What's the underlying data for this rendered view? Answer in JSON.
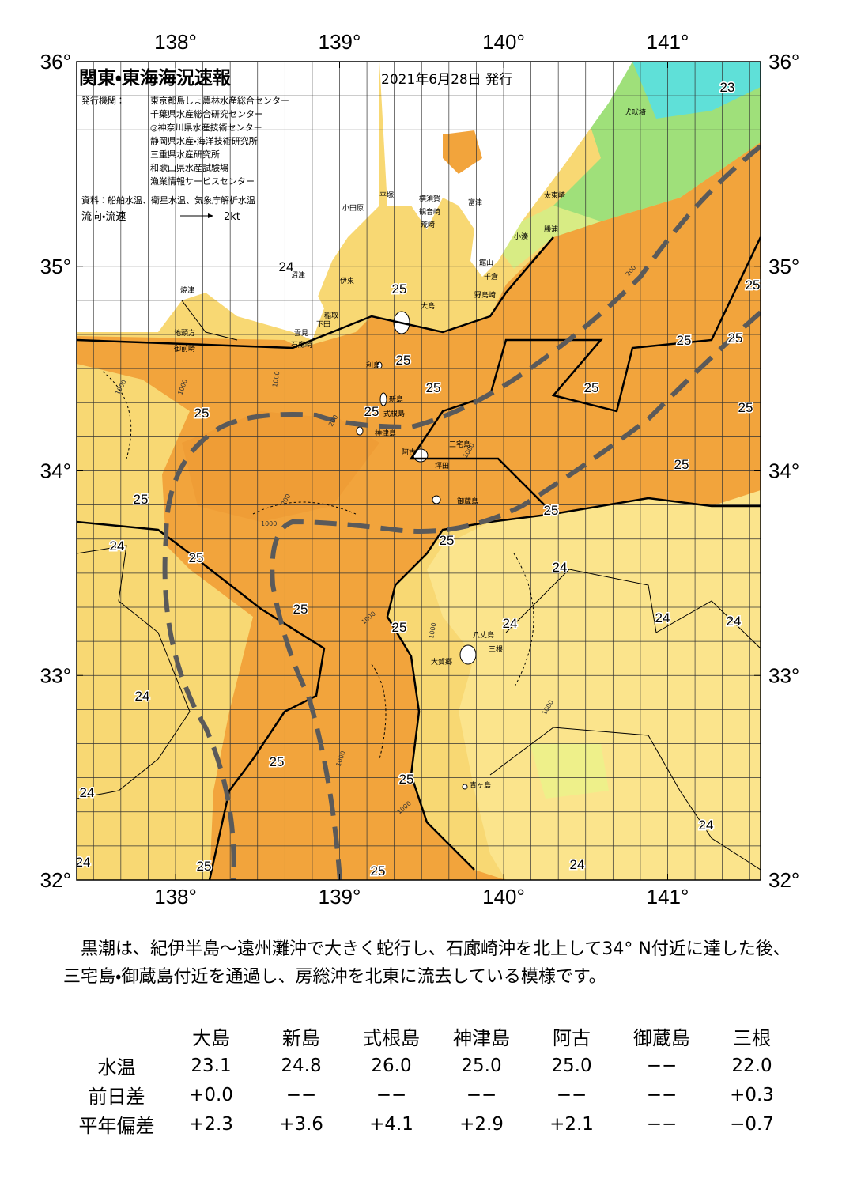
{
  "header": {
    "title": "関東・東海海況速報",
    "date": "2021年6月28日 発行",
    "publisher_label": "発行機関：",
    "publishers": [
      "東京都島しょ農林水産総合センター",
      "千葉県水産総合研究センター",
      "◎神奈川県水産技術センター",
      "静岡県水産・海洋技術研究所",
      "三重県水産研究所",
      "和歌山県水産試験場",
      "漁業情報サービスセンター"
    ],
    "source": "資料：船舶水温、衛星水温、気象庁解析水温",
    "flow_label": "流向・流速",
    "flow_scale": "2kt"
  },
  "map": {
    "lon_ticks": [
      {
        "value": 138,
        "label": "138°"
      },
      {
        "value": 139,
        "label": "139°"
      },
      {
        "value": 140,
        "label": "140°"
      },
      {
        "value": 141,
        "label": "141°"
      }
    ],
    "lat_ticks": [
      {
        "value": 36,
        "label": "36°"
      },
      {
        "value": 35,
        "label": "35°"
      },
      {
        "value": 34,
        "label": "34°"
      },
      {
        "value": 33,
        "label": "33°"
      },
      {
        "value": 32,
        "label": "32°"
      }
    ],
    "place_names": [
      "犬吠埼",
      "太東崎",
      "勝浦",
      "小湊",
      "富津",
      "館山",
      "千倉",
      "野島崎",
      "横須賀",
      "観音崎",
      "荒崎",
      "平塚",
      "小田原",
      "沼津",
      "伊東",
      "焼津",
      "稲取",
      "下田",
      "雲見",
      "石廊崎",
      "地頭方",
      "御前崎",
      "大島",
      "利島",
      "新島",
      "式根島",
      "神津島",
      "三宅島",
      "阿古",
      "坪田",
      "御蔵島",
      "八丈島",
      "三根",
      "大賀郷",
      "青ヶ島"
    ],
    "contour_labels": [
      "23",
      "24",
      "25",
      "25",
      "25",
      "25",
      "25",
      "25",
      "25",
      "25",
      "25",
      "25",
      "25",
      "25",
      "25",
      "25",
      "24",
      "25",
      "24",
      "25",
      "25",
      "24",
      "24",
      "24",
      "24",
      "25",
      "25",
      "24",
      "24",
      "24",
      "25",
      "25",
      "24"
    ],
    "depth_labels": [
      "1000",
      "1000",
      "200",
      "1000",
      "200",
      "1000",
      "1000",
      "1000",
      "1000",
      "1000",
      "1000",
      "1000",
      "200"
    ]
  },
  "note": "　黒潮は、紀伊半島～遠州灘沖で大きく蛇行し、石廊崎沖を北上して34° N付近に達した後、三宅島・御蔵島付近を通過し、房総沖を北東に流去している模様です。",
  "table": {
    "header": [
      "大島",
      "新島",
      "式根島",
      "神津島",
      "阿古",
      "御蔵島",
      "三根"
    ],
    "rows": [
      [
        "水温",
        "23.1",
        "24.8",
        "26.0",
        "25.0",
        "25.0",
        "−−",
        "22.0"
      ],
      [
        "前日差",
        "+0.0",
        "−−",
        "−−",
        "−−",
        "−−",
        "−−",
        "+0.3"
      ],
      [
        "平年偏差",
        "+2.3",
        "+3.6",
        "+4.1",
        "+2.9",
        "+2.1",
        "−−",
        "−0.7"
      ]
    ]
  }
}
